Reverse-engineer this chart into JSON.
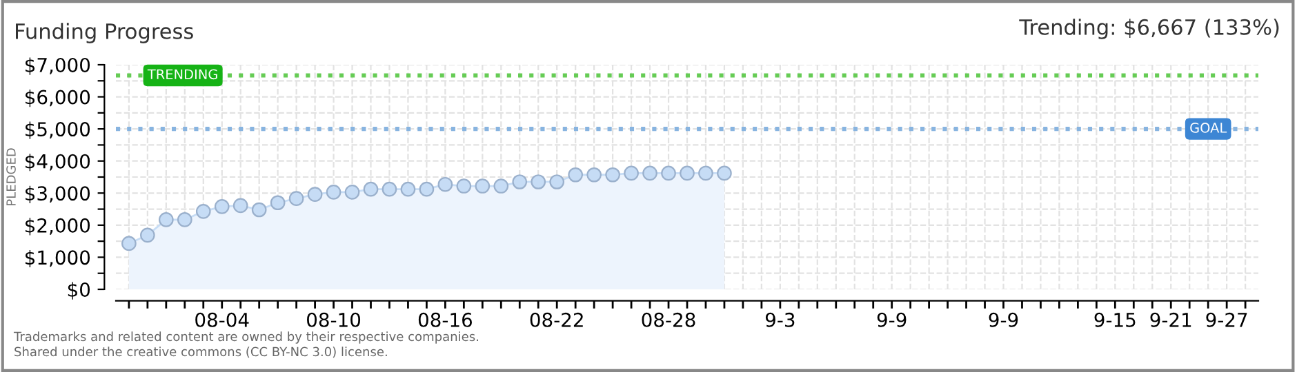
{
  "chart_data": {
    "type": "area",
    "title": "Funding Progress",
    "subtitle": "Trending: $6,667 (133%)",
    "ylabel": "PLEDGED",
    "categories": [
      null,
      null,
      null,
      null,
      null,
      "08-04",
      null,
      null,
      null,
      null,
      null,
      "08-10",
      null,
      null,
      null,
      null,
      null,
      "08-16",
      null,
      null,
      null,
      null,
      null,
      "08-22",
      null,
      null,
      null,
      null,
      null,
      "08-28",
      null,
      null,
      null,
      null,
      null,
      "9-3",
      null,
      null,
      null,
      null,
      null,
      "9-9",
      null,
      null,
      null,
      null,
      null,
      "9-9",
      null,
      null,
      null,
      null,
      null,
      "9-15",
      null,
      null,
      "9-21",
      null,
      null,
      "9-27",
      null
    ],
    "series": [
      {
        "color": "#c6dcf5",
        "values": [
          1430,
          1690,
          2170,
          2170,
          2430,
          2580,
          2610,
          2480,
          2700,
          2830,
          2960,
          3030,
          3030,
          3120,
          3120,
          3120,
          3120,
          3270,
          3220,
          3220,
          3220,
          3350,
          3350,
          3350,
          3570,
          3570,
          3570,
          3620,
          3620,
          3620,
          3620,
          3620,
          3620,
          null,
          null,
          null,
          null,
          null,
          null,
          null,
          null,
          null,
          null,
          null,
          null,
          null,
          null,
          null,
          null,
          null,
          null,
          null,
          null,
          null,
          null,
          null,
          null,
          null,
          null,
          null,
          null
        ]
      }
    ],
    "ylim": [
      0,
      7000
    ],
    "yticks": [
      {
        "value": 0,
        "label": "$0"
      },
      {
        "value": 500,
        "label": null
      },
      {
        "value": 1000,
        "label": "$1,000"
      },
      {
        "value": 1500,
        "label": null
      },
      {
        "value": 2000,
        "label": "$2,000"
      },
      {
        "value": 2500,
        "label": null
      },
      {
        "value": 3000,
        "label": "$3,000"
      },
      {
        "value": 3500,
        "label": null
      },
      {
        "value": 4000,
        "label": "$4,000"
      },
      {
        "value": 4500,
        "label": null
      },
      {
        "value": 5000,
        "label": "$5,000"
      },
      {
        "value": 5500,
        "label": null
      },
      {
        "value": 6000,
        "label": "$6,000"
      },
      {
        "value": 6500,
        "label": null
      },
      {
        "value": 7000,
        "label": "$7,000"
      }
    ],
    "ref_lines": [
      {
        "axis": "y",
        "value": 6667,
        "label": "TRENDING",
        "color": "#66cc55",
        "line_style": "dotted"
      },
      {
        "axis": "y",
        "value": 5000,
        "label": "GOAL",
        "color": "#88b4e0",
        "line_style": "dotted"
      }
    ],
    "grid": true,
    "marker": "circle",
    "legend": false,
    "annotations": [
      "Trademarks and related content are owned by their respective companies.",
      "Shared under the creative commons (CC BY-NC 3.0) license."
    ]
  }
}
